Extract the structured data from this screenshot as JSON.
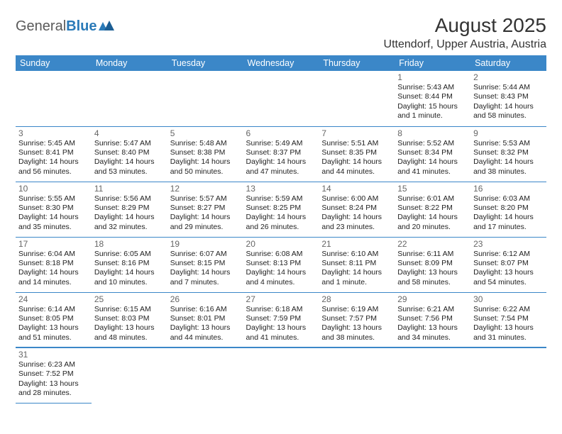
{
  "logo": {
    "general": "General",
    "blue": "Blue"
  },
  "title": "August 2025",
  "location": "Uttendorf, Upper Austria, Austria",
  "header_color": "#3b87c8",
  "text_color": "#222222",
  "dow": [
    "Sunday",
    "Monday",
    "Tuesday",
    "Wednesday",
    "Thursday",
    "Friday",
    "Saturday"
  ],
  "weeks": [
    [
      null,
      null,
      null,
      null,
      null,
      {
        "n": "1",
        "sr": "Sunrise: 5:43 AM",
        "ss": "Sunset: 8:44 PM",
        "dl1": "Daylight: 15 hours",
        "dl2": "and 1 minute."
      },
      {
        "n": "2",
        "sr": "Sunrise: 5:44 AM",
        "ss": "Sunset: 8:43 PM",
        "dl1": "Daylight: 14 hours",
        "dl2": "and 58 minutes."
      }
    ],
    [
      {
        "n": "3",
        "sr": "Sunrise: 5:45 AM",
        "ss": "Sunset: 8:41 PM",
        "dl1": "Daylight: 14 hours",
        "dl2": "and 56 minutes."
      },
      {
        "n": "4",
        "sr": "Sunrise: 5:47 AM",
        "ss": "Sunset: 8:40 PM",
        "dl1": "Daylight: 14 hours",
        "dl2": "and 53 minutes."
      },
      {
        "n": "5",
        "sr": "Sunrise: 5:48 AM",
        "ss": "Sunset: 8:38 PM",
        "dl1": "Daylight: 14 hours",
        "dl2": "and 50 minutes."
      },
      {
        "n": "6",
        "sr": "Sunrise: 5:49 AM",
        "ss": "Sunset: 8:37 PM",
        "dl1": "Daylight: 14 hours",
        "dl2": "and 47 minutes."
      },
      {
        "n": "7",
        "sr": "Sunrise: 5:51 AM",
        "ss": "Sunset: 8:35 PM",
        "dl1": "Daylight: 14 hours",
        "dl2": "and 44 minutes."
      },
      {
        "n": "8",
        "sr": "Sunrise: 5:52 AM",
        "ss": "Sunset: 8:34 PM",
        "dl1": "Daylight: 14 hours",
        "dl2": "and 41 minutes."
      },
      {
        "n": "9",
        "sr": "Sunrise: 5:53 AM",
        "ss": "Sunset: 8:32 PM",
        "dl1": "Daylight: 14 hours",
        "dl2": "and 38 minutes."
      }
    ],
    [
      {
        "n": "10",
        "sr": "Sunrise: 5:55 AM",
        "ss": "Sunset: 8:30 PM",
        "dl1": "Daylight: 14 hours",
        "dl2": "and 35 minutes."
      },
      {
        "n": "11",
        "sr": "Sunrise: 5:56 AM",
        "ss": "Sunset: 8:29 PM",
        "dl1": "Daylight: 14 hours",
        "dl2": "and 32 minutes."
      },
      {
        "n": "12",
        "sr": "Sunrise: 5:57 AM",
        "ss": "Sunset: 8:27 PM",
        "dl1": "Daylight: 14 hours",
        "dl2": "and 29 minutes."
      },
      {
        "n": "13",
        "sr": "Sunrise: 5:59 AM",
        "ss": "Sunset: 8:25 PM",
        "dl1": "Daylight: 14 hours",
        "dl2": "and 26 minutes."
      },
      {
        "n": "14",
        "sr": "Sunrise: 6:00 AM",
        "ss": "Sunset: 8:24 PM",
        "dl1": "Daylight: 14 hours",
        "dl2": "and 23 minutes."
      },
      {
        "n": "15",
        "sr": "Sunrise: 6:01 AM",
        "ss": "Sunset: 8:22 PM",
        "dl1": "Daylight: 14 hours",
        "dl2": "and 20 minutes."
      },
      {
        "n": "16",
        "sr": "Sunrise: 6:03 AM",
        "ss": "Sunset: 8:20 PM",
        "dl1": "Daylight: 14 hours",
        "dl2": "and 17 minutes."
      }
    ],
    [
      {
        "n": "17",
        "sr": "Sunrise: 6:04 AM",
        "ss": "Sunset: 8:18 PM",
        "dl1": "Daylight: 14 hours",
        "dl2": "and 14 minutes."
      },
      {
        "n": "18",
        "sr": "Sunrise: 6:05 AM",
        "ss": "Sunset: 8:16 PM",
        "dl1": "Daylight: 14 hours",
        "dl2": "and 10 minutes."
      },
      {
        "n": "19",
        "sr": "Sunrise: 6:07 AM",
        "ss": "Sunset: 8:15 PM",
        "dl1": "Daylight: 14 hours",
        "dl2": "and 7 minutes."
      },
      {
        "n": "20",
        "sr": "Sunrise: 6:08 AM",
        "ss": "Sunset: 8:13 PM",
        "dl1": "Daylight: 14 hours",
        "dl2": "and 4 minutes."
      },
      {
        "n": "21",
        "sr": "Sunrise: 6:10 AM",
        "ss": "Sunset: 8:11 PM",
        "dl1": "Daylight: 14 hours",
        "dl2": "and 1 minute."
      },
      {
        "n": "22",
        "sr": "Sunrise: 6:11 AM",
        "ss": "Sunset: 8:09 PM",
        "dl1": "Daylight: 13 hours",
        "dl2": "and 58 minutes."
      },
      {
        "n": "23",
        "sr": "Sunrise: 6:12 AM",
        "ss": "Sunset: 8:07 PM",
        "dl1": "Daylight: 13 hours",
        "dl2": "and 54 minutes."
      }
    ],
    [
      {
        "n": "24",
        "sr": "Sunrise: 6:14 AM",
        "ss": "Sunset: 8:05 PM",
        "dl1": "Daylight: 13 hours",
        "dl2": "and 51 minutes."
      },
      {
        "n": "25",
        "sr": "Sunrise: 6:15 AM",
        "ss": "Sunset: 8:03 PM",
        "dl1": "Daylight: 13 hours",
        "dl2": "and 48 minutes."
      },
      {
        "n": "26",
        "sr": "Sunrise: 6:16 AM",
        "ss": "Sunset: 8:01 PM",
        "dl1": "Daylight: 13 hours",
        "dl2": "and 44 minutes."
      },
      {
        "n": "27",
        "sr": "Sunrise: 6:18 AM",
        "ss": "Sunset: 7:59 PM",
        "dl1": "Daylight: 13 hours",
        "dl2": "and 41 minutes."
      },
      {
        "n": "28",
        "sr": "Sunrise: 6:19 AM",
        "ss": "Sunset: 7:57 PM",
        "dl1": "Daylight: 13 hours",
        "dl2": "and 38 minutes."
      },
      {
        "n": "29",
        "sr": "Sunrise: 6:21 AM",
        "ss": "Sunset: 7:56 PM",
        "dl1": "Daylight: 13 hours",
        "dl2": "and 34 minutes."
      },
      {
        "n": "30",
        "sr": "Sunrise: 6:22 AM",
        "ss": "Sunset: 7:54 PM",
        "dl1": "Daylight: 13 hours",
        "dl2": "and 31 minutes."
      }
    ],
    [
      {
        "n": "31",
        "sr": "Sunrise: 6:23 AM",
        "ss": "Sunset: 7:52 PM",
        "dl1": "Daylight: 13 hours",
        "dl2": "and 28 minutes."
      },
      null,
      null,
      null,
      null,
      null,
      null
    ]
  ]
}
